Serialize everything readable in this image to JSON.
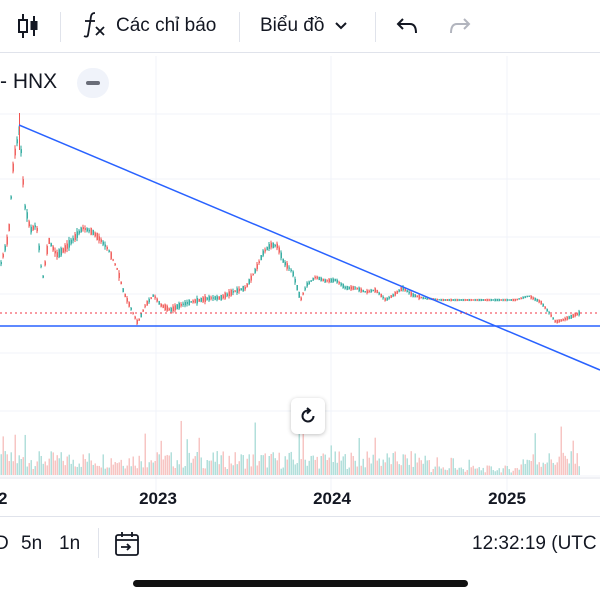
{
  "toolbar": {
    "indicators_label": "Các chỉ báo",
    "chart_type_label": "Biểu đồ",
    "icons": [
      "candles-icon",
      "function-icon",
      "chevron-down-icon",
      "undo-icon",
      "redo-icon"
    ]
  },
  "symbol": {
    "label": "- HNX"
  },
  "chart_data": {
    "type": "candlestick",
    "x_ticks": [
      "2",
      "2023",
      "2024",
      "2025"
    ],
    "volume_pane": true,
    "trendlines": [
      {
        "kind": "descending",
        "color": "#2962ff"
      },
      {
        "kind": "horizontal",
        "color": "#2962ff"
      }
    ],
    "price_line": {
      "style": "dotted",
      "color": "#f23645"
    },
    "colors": {
      "up": "#26a69a",
      "down": "#ef5350"
    }
  },
  "bottom": {
    "ranges": [
      "D",
      "5n",
      "1n"
    ],
    "time": "12:32:19 (UTC"
  },
  "colors": {
    "accent": "#2962ff",
    "up": "#26a69a",
    "down": "#ef5350"
  }
}
